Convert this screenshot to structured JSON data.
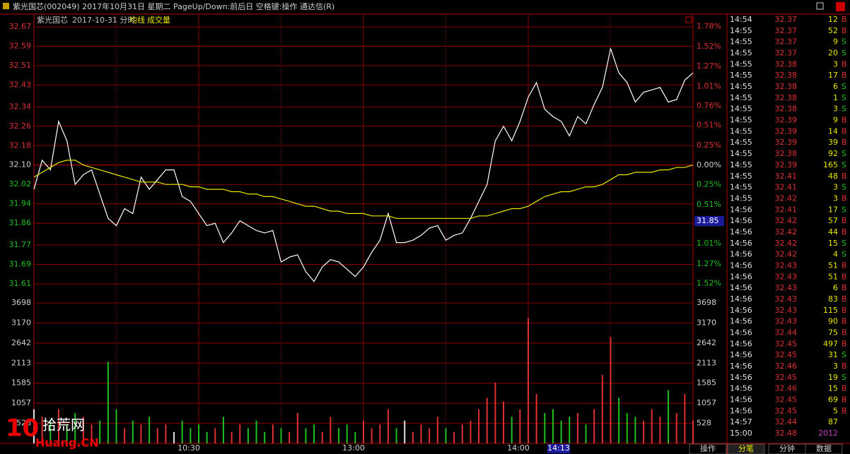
{
  "window": {
    "title": "紫光国芯(002049) 2017年10月31日 星期二 PageUp/Down:前后日 空格键:操作 通达信(R)"
  },
  "header": {
    "stock": "紫光国芯",
    "date": "2017-10-31 分时"
  },
  "chart_data": [
    {
      "type": "line",
      "ylim": [
        31.61,
        32.67
      ],
      "yticks": [
        32.67,
        32.59,
        32.51,
        32.43,
        32.34,
        32.26,
        32.18,
        {
          "value": 32.1,
          "label": "32.10"
        },
        32.02,
        31.94,
        31.86,
        31.77,
        31.69,
        31.61
      ],
      "y2lim": [
        -1.526,
        1.776
      ],
      "y2ticks": [
        {
          "value": 1.78,
          "label": "1.78%"
        },
        {
          "value": 1.52,
          "label": "1.52%"
        },
        {
          "value": 1.27,
          "label": "1.27%"
        },
        {
          "value": 1.01,
          "label": "1.01%"
        },
        {
          "value": 0.76,
          "label": "0.76%"
        },
        {
          "value": 0.51,
          "label": "0.51%"
        },
        {
          "value": 0.25,
          "label": "0.25%"
        },
        {
          "value": 0,
          "label": "0.00%"
        },
        {
          "value": -0.25,
          "label": "0.25%"
        },
        {
          "value": -0.51,
          "label": "0.51%"
        },
        {
          "value": -0.76,
          "label": "0.76%"
        },
        {
          "value": -1.01,
          "label": "1.01%"
        },
        {
          "value": -1.27,
          "label": "1.27%"
        },
        {
          "value": -1.52,
          "label": "1.52%"
        }
      ],
      "xlim": [
        0,
        80
      ],
      "xticks": [
        {
          "value": 20,
          "label": "10:30"
        },
        {
          "value": 40,
          "label": "13:00"
        },
        {
          "value": 60,
          "label": "14:00"
        }
      ],
      "grid": true,
      "series": [
        {
          "color": "#ffffff",
          "values": [
            32.0,
            32.12,
            32.08,
            32.28,
            32.2,
            32.02,
            32.06,
            32.08,
            31.98,
            31.88,
            31.85,
            31.92,
            31.9,
            32.05,
            32.0,
            32.04,
            32.08,
            32.08,
            31.97,
            31.95,
            31.9,
            31.85,
            31.86,
            31.78,
            31.82,
            31.87,
            31.85,
            31.83,
            31.82,
            31.83,
            31.7,
            31.72,
            31.73,
            31.66,
            31.62,
            31.68,
            31.71,
            31.7,
            31.67,
            31.64,
            31.68,
            31.74,
            31.79,
            31.9,
            31.78,
            31.78,
            31.79,
            31.81,
            31.84,
            31.85,
            31.79,
            31.81,
            31.82,
            31.88,
            31.95,
            32.02,
            32.2,
            32.26,
            32.2,
            32.28,
            32.38,
            32.44,
            32.33,
            32.3,
            32.28,
            32.22,
            32.3,
            32.27,
            32.35,
            32.42,
            32.58,
            32.48,
            32.44,
            32.36,
            32.4,
            32.41,
            32.42,
            32.36,
            32.37,
            32.45,
            32.48
          ]
        },
        {
          "name": "均线",
          "color": "#e8e800",
          "values": [
            32.05,
            32.07,
            32.09,
            32.11,
            32.12,
            32.12,
            32.1,
            32.09,
            32.08,
            32.07,
            32.06,
            32.05,
            32.04,
            32.03,
            32.03,
            32.03,
            32.02,
            32.02,
            32.02,
            32.01,
            32.01,
            32.0,
            32.0,
            32.0,
            31.99,
            31.99,
            31.98,
            31.98,
            31.97,
            31.97,
            31.96,
            31.95,
            31.94,
            31.93,
            31.93,
            31.92,
            31.91,
            31.91,
            31.9,
            31.9,
            31.9,
            31.89,
            31.89,
            31.89,
            31.88,
            31.88,
            31.88,
            31.88,
            31.88,
            31.88,
            31.88,
            31.88,
            31.88,
            31.88,
            31.89,
            31.89,
            31.9,
            31.91,
            31.92,
            31.92,
            31.93,
            31.95,
            31.97,
            31.98,
            31.99,
            31.99,
            32.0,
            32.01,
            32.01,
            32.02,
            32.04,
            32.06,
            32.06,
            32.07,
            32.07,
            32.07,
            32.08,
            32.08,
            32.09,
            32.09,
            32.1
          ]
        }
      ]
    },
    {
      "type": "bar",
      "ylim": [
        0,
        3698
      ],
      "yticks": [
        3698,
        3170,
        2642,
        2113,
        1585,
        1057,
        528
      ],
      "xlim": [
        0,
        80
      ],
      "series": [
        {
          "name": "成交量",
          "color": "#e8e800",
          "values": [
            900,
            700,
            600,
            900,
            500,
            800,
            700,
            500,
            600,
            2150,
            900,
            400,
            600,
            500,
            700,
            400,
            500,
            300,
            600,
            400,
            500,
            300,
            400,
            700,
            300,
            500,
            400,
            600,
            300,
            500,
            400,
            300,
            800,
            400,
            500,
            300,
            700,
            400,
            500,
            300,
            600,
            400,
            500,
            900,
            400,
            600,
            300,
            500,
            400,
            700,
            400,
            300,
            500,
            600,
            900,
            1200,
            1600,
            1100,
            700,
            900,
            3300,
            1300,
            800,
            900,
            600,
            700,
            800,
            500,
            900,
            1800,
            2800,
            1200,
            800,
            700,
            600,
            900,
            700,
            1400,
            800,
            1300,
            600
          ]
        }
      ]
    }
  ],
  "cursor": {
    "time": "14:13",
    "price": 31.85
  },
  "trade_table": {
    "rows": [
      [
        "14:54",
        32.37,
        12,
        "B"
      ],
      [
        "14:55",
        32.37,
        52,
        "B"
      ],
      [
        "14:55",
        32.37,
        9,
        "S"
      ],
      [
        "14:55",
        32.37,
        20,
        "S"
      ],
      [
        "14:55",
        32.38,
        3,
        "B"
      ],
      [
        "14:55",
        32.38,
        17,
        "B"
      ],
      [
        "14:55",
        32.38,
        6,
        "S"
      ],
      [
        "14:55",
        32.38,
        1,
        "S"
      ],
      [
        "14:55",
        32.38,
        3,
        "S"
      ],
      [
        "14:55",
        32.39,
        9,
        "B"
      ],
      [
        "14:55",
        32.39,
        14,
        "B"
      ],
      [
        "14:55",
        32.39,
        39,
        "B"
      ],
      [
        "14:55",
        32.38,
        92,
        "S"
      ],
      [
        "14:55",
        32.39,
        165,
        "S"
      ],
      [
        "14:55",
        32.41,
        48,
        "B"
      ],
      [
        "14:55",
        32.41,
        3,
        "S"
      ],
      [
        "14:55",
        32.42,
        3,
        "B"
      ],
      [
        "14:56",
        32.41,
        17,
        "S"
      ],
      [
        "14:56",
        32.42,
        57,
        "B"
      ],
      [
        "14:56",
        32.42,
        44,
        "B"
      ],
      [
        "14:56",
        32.42,
        15,
        "S"
      ],
      [
        "14:56",
        32.42,
        4,
        "S"
      ],
      [
        "14:56",
        32.43,
        51,
        "B"
      ],
      [
        "14:56",
        32.43,
        51,
        "B"
      ],
      [
        "14:56",
        32.43,
        6,
        "B"
      ],
      [
        "14:56",
        32.43,
        83,
        "B"
      ],
      [
        "14:56",
        32.43,
        115,
        "B"
      ],
      [
        "14:56",
        32.43,
        90,
        "B"
      ],
      [
        "14:56",
        32.44,
        75,
        "B"
      ],
      [
        "14:56",
        32.45,
        497,
        "B"
      ],
      [
        "14:56",
        32.45,
        31,
        "S"
      ],
      [
        "14:56",
        32.46,
        3,
        "B"
      ],
      [
        "14:56",
        32.45,
        19,
        "S"
      ],
      [
        "14:56",
        32.46,
        15,
        "B"
      ],
      [
        "14:56",
        32.45,
        69,
        "B"
      ],
      [
        "14:56",
        32.45,
        5,
        "B"
      ],
      [
        "14:57",
        32.44,
        87
      ],
      [
        "15:00",
        32.48,
        2012
      ]
    ]
  },
  "tabs": [
    "操作",
    "分笔",
    "分钟",
    "数据"
  ],
  "watermark": {
    "number": "10",
    "name": "拾荒网",
    "site": "Huang.CN"
  }
}
